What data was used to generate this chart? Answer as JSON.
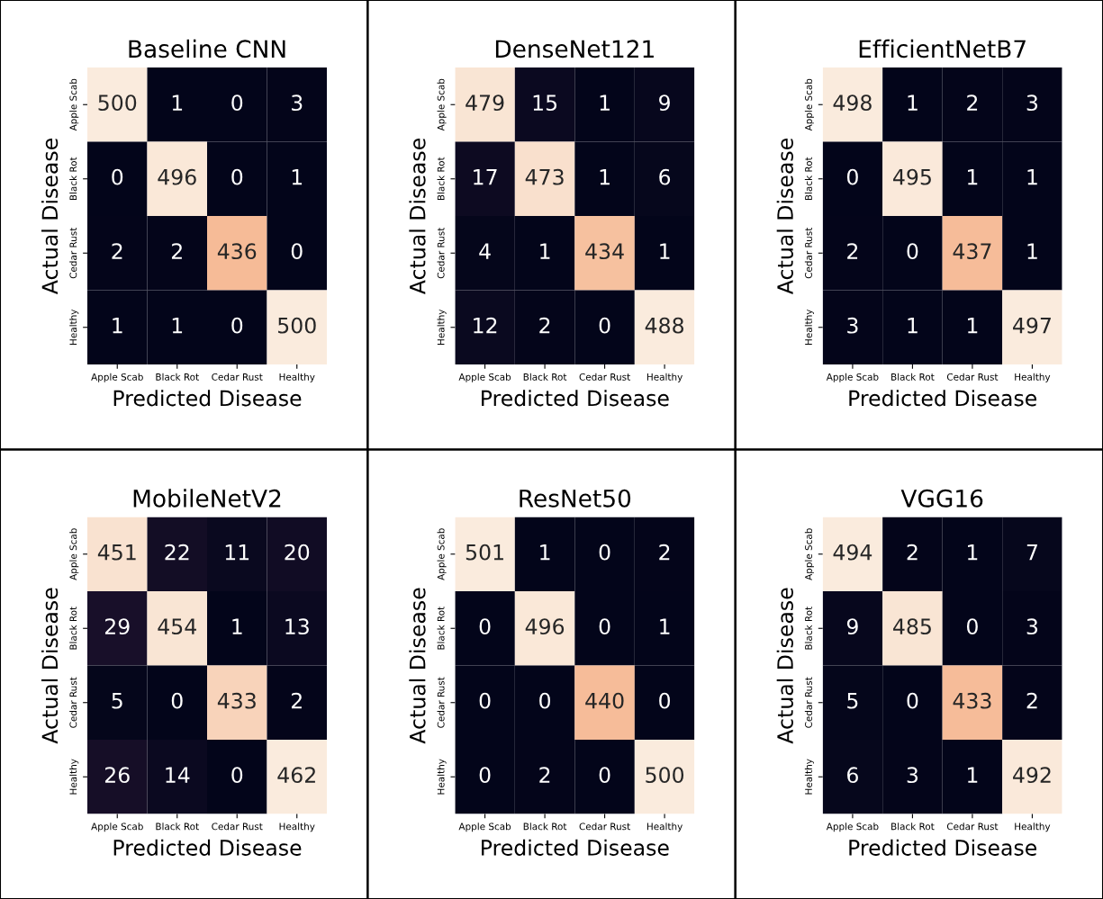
{
  "chart_data": [
    {
      "type": "heatmap",
      "title": "Baseline CNN",
      "xlabel": "Predicted Disease",
      "ylabel": "Actual Disease",
      "categories": [
        "Apple Scab",
        "Black Rot",
        "Cedar Rust",
        "Healthy"
      ],
      "y_categories": [
        "Apple Scab",
        "Black Rot",
        "Cedar Rust",
        "Healthy"
      ],
      "cells": [
        [
          500,
          1,
          0,
          3
        ],
        [
          0,
          496,
          0,
          1
        ],
        [
          2,
          2,
          436,
          0
        ],
        [
          1,
          1,
          0,
          500
        ]
      ],
      "data_labels": true
    },
    {
      "type": "heatmap",
      "title": "DenseNet121",
      "xlabel": "Predicted Disease",
      "ylabel": "Actual Disease",
      "categories": [
        "Apple Scab",
        "Black Rot",
        "Cedar Rust",
        "Healthy"
      ],
      "y_categories": [
        "Apple Scab",
        "Black Rot",
        "Cedar Rust",
        "Healthy"
      ],
      "cells": [
        [
          479,
          15,
          1,
          9
        ],
        [
          17,
          473,
          1,
          6
        ],
        [
          4,
          1,
          434,
          1
        ],
        [
          12,
          2,
          0,
          488
        ]
      ],
      "data_labels": true
    },
    {
      "type": "heatmap",
      "title": "EfficientNetB7",
      "xlabel": "Predicted Disease",
      "ylabel": "Actual Disease",
      "categories": [
        "Apple Scab",
        "Black Rot",
        "Cedar Rust",
        "Healthy"
      ],
      "y_categories": [
        "Apple Scab",
        "Black Rot",
        "Cedar Rust",
        "Healthy"
      ],
      "cells": [
        [
          498,
          1,
          2,
          3
        ],
        [
          0,
          495,
          1,
          1
        ],
        [
          2,
          0,
          437,
          1
        ],
        [
          3,
          1,
          1,
          497
        ]
      ],
      "data_labels": true
    },
    {
      "type": "heatmap",
      "title": "MobileNetV2",
      "xlabel": "Predicted Disease",
      "ylabel": "Actual Disease",
      "categories": [
        "Apple Scab",
        "Black Rot",
        "Cedar Rust",
        "Healthy"
      ],
      "y_categories": [
        "Apple Scab",
        "Black Rot",
        "Cedar Rust",
        "Healthy"
      ],
      "cells": [
        [
          451,
          22,
          11,
          20
        ],
        [
          29,
          454,
          1,
          13
        ],
        [
          5,
          0,
          433,
          2
        ],
        [
          26,
          14,
          0,
          462
        ]
      ],
      "data_labels": true
    },
    {
      "type": "heatmap",
      "title": "ResNet50",
      "xlabel": "Predicted Disease",
      "ylabel": "Actual Disease",
      "categories": [
        "Apple Scab",
        "Black Rot",
        "Cedar Rust",
        "Healthy"
      ],
      "y_categories": [
        "Apple Scab",
        "Black Rot",
        "Cedar Rust",
        "Healthy"
      ],
      "cells": [
        [
          501,
          1,
          0,
          2
        ],
        [
          0,
          496,
          0,
          1
        ],
        [
          0,
          0,
          440,
          0
        ],
        [
          0,
          2,
          0,
          500
        ]
      ],
      "data_labels": true
    },
    {
      "type": "heatmap",
      "title": "VGG16",
      "xlabel": "Predicted Disease",
      "ylabel": "Actual Disease",
      "categories": [
        "Apple Scab",
        "Black Rot",
        "Cedar Rust",
        "Healthy"
      ],
      "y_categories": [
        "Apple Scab",
        "Black Rot",
        "Cedar Rust",
        "Healthy"
      ],
      "cells": [
        [
          494,
          2,
          1,
          7
        ],
        [
          9,
          485,
          0,
          3
        ],
        [
          5,
          0,
          433,
          2
        ],
        [
          6,
          3,
          1,
          492
        ]
      ],
      "data_labels": true
    }
  ]
}
